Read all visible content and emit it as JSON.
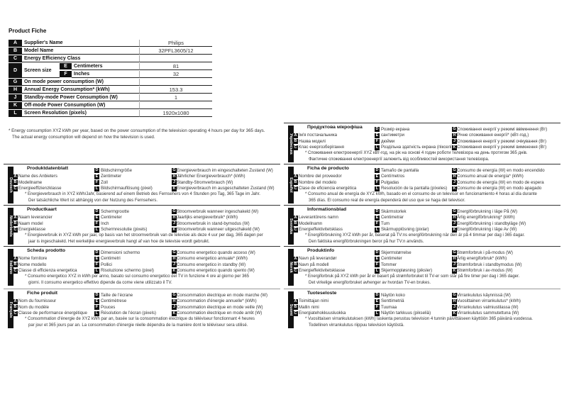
{
  "title": "Product Fiche",
  "table": {
    "rows": [
      {
        "letter": "A",
        "label": "Supplier's Name",
        "value": "Philips"
      },
      {
        "letter": "B",
        "label": "Model Name",
        "value": "32PFL3605/12"
      },
      {
        "letter": "C",
        "label": "Energy Efficiency Class",
        "value": ""
      },
      {
        "letter": "D",
        "label": "Screen size",
        "sub": [
          {
            "letter": "E",
            "label": "Centimeters",
            "value": "81"
          },
          {
            "letter": "F",
            "label": "Inches",
            "value": "32"
          }
        ]
      },
      {
        "letter": "G",
        "label": "On mode power consumption (W)",
        "value": ""
      },
      {
        "letter": "H",
        "label": "Annual Energy Consumption* (kWh)",
        "value": "153.3"
      },
      {
        "letter": "J",
        "label": "Standby-mode Power Consumption (W)",
        "value": "1"
      },
      {
        "letter": "K",
        "label": "Off-mode Power Consumption (W)",
        "value": ""
      },
      {
        "letter": "L",
        "label": "Screen Resolution (pixels)",
        "value": "1920x1080"
      }
    ],
    "footnote": [
      "* Energy consumption XYZ kWh per year, based on the power consumption of the television operating 4 hours per day for 365 days.",
      "The actual energy consumption will depend on how the television is used."
    ]
  },
  "languages": [
    {
      "lang": "Deutsch",
      "heading": "Produktdatenblatt",
      "items": {
        "A": "Name des Anbieters",
        "B": "Modellname",
        "C": "Energieeffizienzklasse",
        "D": "Bildschirmgröße",
        "E": "Zentimeter",
        "F": "Zoll",
        "L": "Bildschirmauflösung (pixel)",
        "G": "Energieverbrauch im eingeschalteten Zustand (W)",
        "H": "Jährlicher Energieverbrauch* (kWh)",
        "J": "Standby-Stromverbrauch (W)",
        "K": "Energieverbrauch im ausgeschalteten Zustand (W)"
      },
      "footnote": [
        "* Energieverbrauch in XYZ kWh/Jahr, basierend auf einem Betrieb des Fernsehers von 4 Stunden pro Tag, 365 Tage im Jahr.",
        "Der tatsächliche Wert ist abhängig von der Nutzung des Fernsehers."
      ]
    },
    {
      "lang": "Nederlands",
      "heading": "Productkaart",
      "items": {
        "A": "Naam leverancier",
        "B": "Naam model",
        "C": "Energieklasse",
        "D": "Schermgrootte",
        "E": "Centimeter",
        "F": "Inch",
        "L": "Schermresolutie (pixels)",
        "G": "Stroomverbruik wanneer ingeschakeld (W)",
        "H": "Jaarlijks energieverbruik* (kWh)",
        "J": "Stroomverbruik in stand-bymodus (W)",
        "K": "Stroomverbruik wanneer uitgeschakeld (W)"
      },
      "footnote": [
        "* Energieverbruik in XYZ kWh per jaar, op basis van het stroomverbruik van de televisie als deze 4 uur per dag, 365 dagen per",
        "jaar is ingeschakeld. Het werkelijke energieverbruik hangt af van hoe de televisie wordt gebruikt."
      ]
    },
    {
      "lang": "Italiano",
      "heading": "Scheda prodotto",
      "items": {
        "A": "Nome fornitore",
        "B": "Nome modello",
        "C": "Classe di efficienza energetica",
        "D": "Dimensioni schermo",
        "E": "Centimetri",
        "F": "Pollici",
        "L": "Risoluzione schermo (pixel)",
        "G": "Consumo energetico quando acceso (W)",
        "H": "Consumo energetico annuale* (kWh)",
        "J": "Consumo energetico in standby (W)",
        "K": "Consumo energetico quando spento (W)"
      },
      "footnote": [
        "* Consumo energetico XYZ in kWh per anno, basato sul consumo energetico del TV in funzione 4 ore al giorno per 365",
        "giorni. Il consumo energetico effettivo dipende da come viene utilizzato il TV."
      ]
    },
    {
      "lang": "Français",
      "heading": "Fiche produit",
      "items": {
        "A": "Nom du fournisseur",
        "B": "Nom du modèle",
        "C": "Classe de performance énergétique",
        "D": "Taille de l'écrane",
        "E": "Centimètrese",
        "F": "Pouces",
        "L": "Résolution de l'écran (pixels)",
        "G": "Consommation électrique en mode marche (W)",
        "H": "Consommation d'énergie annuelle* (kWh)",
        "J": "Consommation électrique en mode veille (W)",
        "K": "Consommation électrique en mode arrêt (W)"
      },
      "footnote": [
        "* Consommation d'énergie de XYZ kWh par an, basée sur la consommation électrique du téléviseur fonctionnant 4 heures",
        "par jour et 365 jours par an. La consommation d'énergie réelle dépendra de la manière dont le téléviseur sera utilisé."
      ]
    },
    {
      "lang": "Українська",
      "heading": "Продуктова мікрофіша",
      "items": {
        "A": "Ім'я постачальника",
        "B": "Назва моделі",
        "C": "Клас енергозберігання",
        "D": "Розмір екрана",
        "E": "сантиметри",
        "F": "дюйми",
        "L": "Роздільна здатність екрана (пікселі)",
        "G": "Споживання енергії у режимі ввімкнення (Вт)",
        "H": "Річне споживання енергії* (кВт-год.)",
        "J": "Споживання енергії у режимі очікування (Вт)",
        "K": "Споживання енергії у режимі вимкнення (Вт)"
      },
      "footnote": [
        "* Споживання електроенергії XYZ кВт-год. на рік на основі 4 годин роботи телевізора на день протягом 365 днів.",
        "Фактичне споживання електроенергії залежить від особливостей використання телевізора."
      ]
    },
    {
      "lang": "Español",
      "heading": "Ficha de producto",
      "items": {
        "A": "Nombre del proveedor",
        "B": "Nombre del modelo",
        "C": "Clase de eficiencia energética",
        "D": "Tamaño de pantalla",
        "E": "Centímetros",
        "F": "Pulgadas",
        "L": "Resolución de la pantalla (píxeles)",
        "G": "Consumo de energía (W) en modo encendido",
        "H": "Consumo anual de energía* (kWh)",
        "J": "Consumo de energía (W) en modo de espera",
        "K": "Consumo de energía (W) en modo apagado"
      },
      "footnote": [
        "* Consumo anual de energía de XYZ kWh, basado en el consumo de un televisor en funcionamiento 4 horas al día durante",
        "365 días. El consumo real de energía dependerá del uso que se haga del televisor."
      ]
    },
    {
      "lang": "Svenska",
      "heading": "Informationsblad",
      "items": {
        "A": "Leverantörens namn",
        "B": "Modellnamn",
        "C": "Energieffektivitetsklass",
        "D": "Skärmstorlek",
        "E": "Centimetrar",
        "F": "Tum",
        "L": "Skärmupplösning (pixlar)",
        "G": "Energiförbrukning i läge På (W)",
        "H": "Årlig energiförbrukning* (kWh)",
        "J": "Energiförbrukning i standbyläge (W)",
        "K": "Energiförbrukning i läge Av (W)"
      },
      "footnote": [
        "* Energiförbrukning XYZ kWh per år, baserat på TV:ns energiförbrukning när den är på 4 timmar per dag i 365 dagar.",
        "Den faktiska energiförbrukningen beror på hur TV:n används."
      ]
    },
    {
      "lang": "Norsk",
      "heading": "Produktinfo",
      "items": {
        "A": "Navn på leverandør",
        "B": "Navn på modell",
        "C": "Energieffektivitetsklasse",
        "D": "Skjermstørrelse",
        "E": "Centimeter",
        "F": "Tommer",
        "L": "Skjermoppløsning (piksler)",
        "G": "Strømforbruk i på-modus (W)",
        "H": "Årlig energiforbruk* (kWh)",
        "J": "Strømforbruk i standbymodus (W)",
        "K": "Strømforbruk i av-modus (W)"
      },
      "footnote": [
        "* Energiforbruk på XYZ kWh per år er basert på strømforbruket til TV-er som står på fire timer per dag i 365 dager.",
        "Det virkelige energiforbruket avhenger av hvordan TV-en brukes."
      ]
    },
    {
      "lang": "Suomi",
      "heading": "Tuoteseloste",
      "items": {
        "A": "Toimittajan nimi",
        "B": "Mallin nimi",
        "C": "Energiatehokkuusluokka",
        "D": "Näytön koko",
        "E": "Senttimetriä",
        "F": "Tuumaa",
        "L": "Näytön tarkkuus (pikseliä)",
        "G": "Virrankulutus käynnissä (W)",
        "H": "Vuosittainen virrankulutus* (kWh)",
        "J": "Virrankulutus valmiustilassa (W)",
        "K": "Virrankulutus sammutettuna (W)"
      },
      "footnote": [
        "* Vuosittaisen virrankulutuksen (kWh) laskenta perustuu television 4 tunnin päivittäiseen käyttöön 365 päivänä vuodessa.",
        "Todellinen virrankulutus riippuu television käytöstä."
      ]
    }
  ]
}
